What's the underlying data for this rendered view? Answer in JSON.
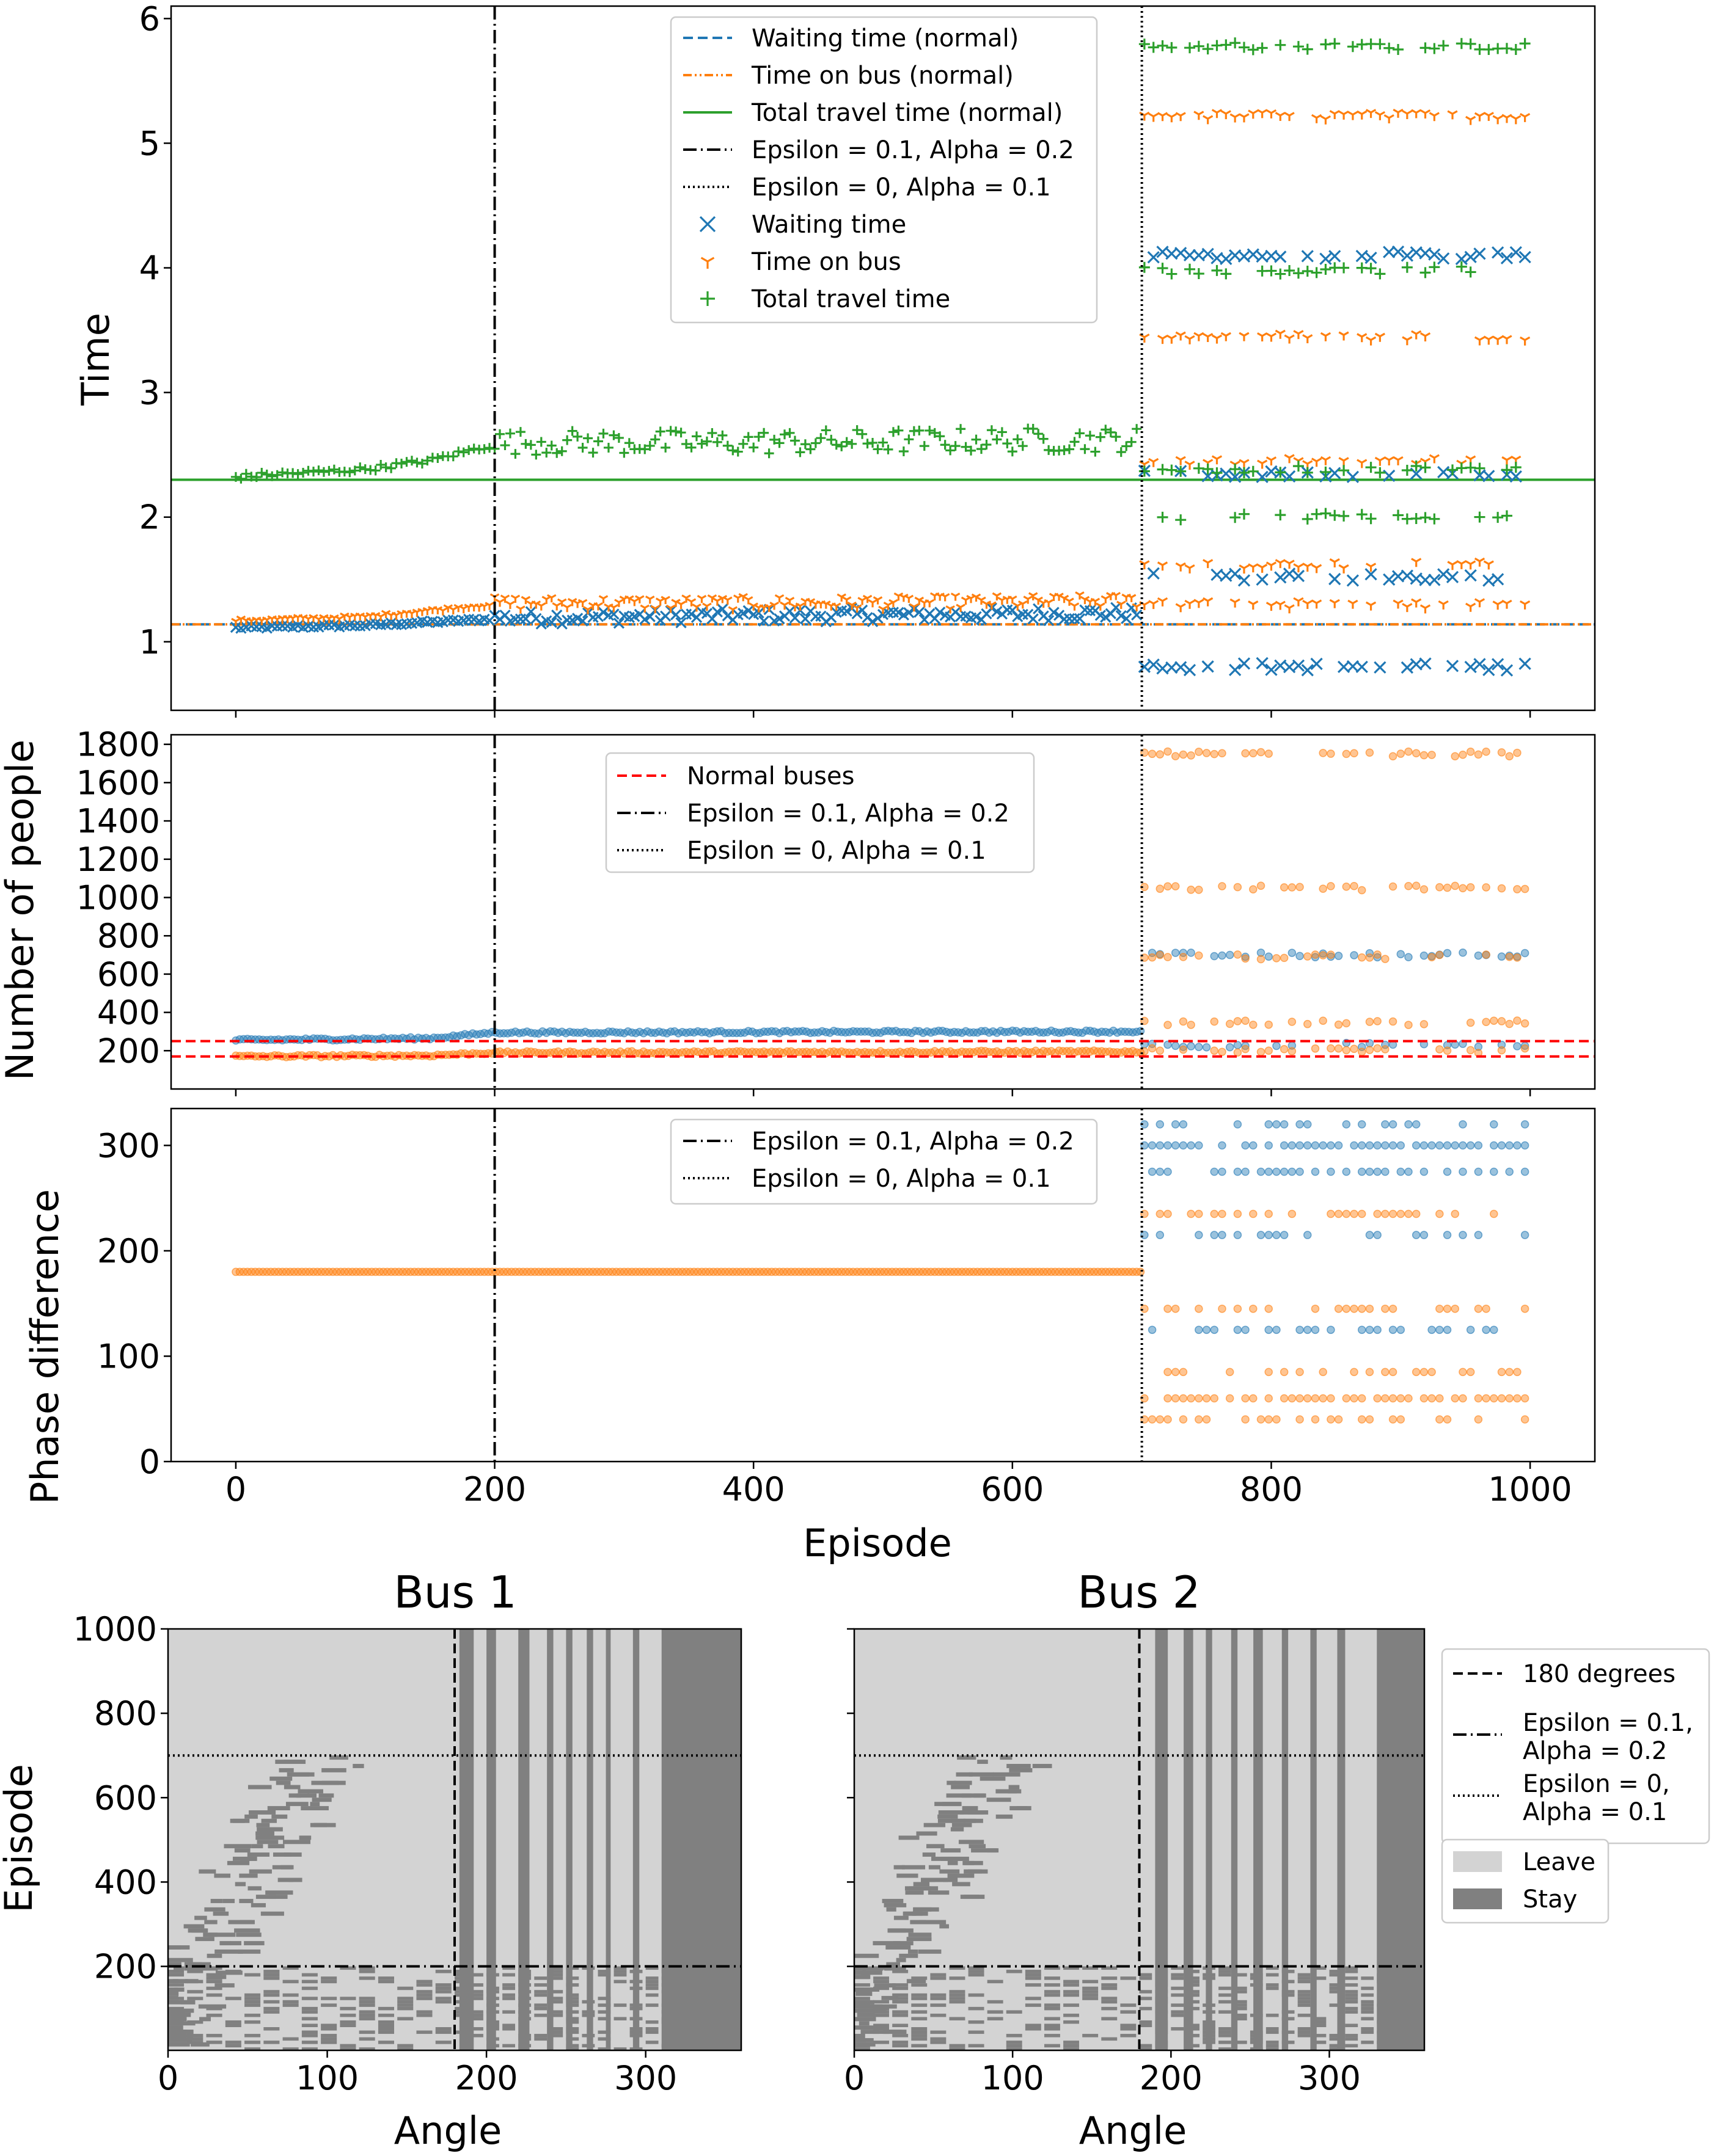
{
  "colors": {
    "blue": "#1f77b4",
    "orange": "#ff7f0e",
    "green": "#2ca02c",
    "red": "#ff0000",
    "black": "#000000",
    "leave": "#d3d3d3",
    "stay": "#808080"
  },
  "chart_data": [
    {
      "type": "scatter",
      "panel": "time",
      "ylabel": "Time",
      "xlabel": "",
      "xlim": [
        -50,
        1050
      ],
      "ylim": [
        0.45,
        6.1
      ],
      "yticks": [
        "1",
        "2",
        "3",
        "4",
        "5",
        "6"
      ],
      "ytick_values": [
        1,
        2,
        3,
        4,
        5,
        6
      ],
      "grid": false,
      "legend_position": "top-center",
      "reference_lines": [
        {
          "name": "Waiting time (normal)",
          "y": 1.14,
          "style": "dashed",
          "color": "blue"
        },
        {
          "name": "Time on bus (normal)",
          "y": 1.14,
          "style": "dashdotdot",
          "color": "orange"
        },
        {
          "name": "Total travel time (normal)",
          "y": 2.3,
          "style": "solid",
          "color": "green"
        }
      ],
      "vertical_lines": [
        {
          "name": "Epsilon = 0.1, Alpha = 0.2",
          "x": 200,
          "style": "dashdot"
        },
        {
          "name": "Epsilon = 0, Alpha = 0.1",
          "x": 700,
          "style": "dotted"
        }
      ],
      "series": [
        {
          "name": "Waiting time",
          "marker": "x",
          "color": "blue",
          "trend": [
            [
              0,
              1.11
            ],
            [
              100,
              1.13
            ],
            [
              200,
              1.18
            ],
            [
              400,
              1.2
            ],
            [
              600,
              1.21
            ],
            [
              700,
              1.22
            ]
          ],
          "levels_after_700": [
            4.1,
            2.35,
            1.52,
            0.8
          ]
        },
        {
          "name": "Time on bus",
          "marker": "tri_down",
          "color": "orange",
          "trend": [
            [
              0,
              1.17
            ],
            [
              100,
              1.2
            ],
            [
              200,
              1.3
            ],
            [
              400,
              1.3
            ],
            [
              600,
              1.31
            ],
            [
              700,
              1.32
            ]
          ],
          "levels_after_700": [
            5.22,
            3.45,
            2.45,
            1.62,
            1.3
          ]
        },
        {
          "name": "Total travel time",
          "marker": "plus",
          "color": "green",
          "trend": [
            [
              0,
              2.32
            ],
            [
              100,
              2.38
            ],
            [
              150,
              2.45
            ],
            [
              200,
              2.58
            ],
            [
              400,
              2.58
            ],
            [
              600,
              2.6
            ],
            [
              700,
              2.6
            ]
          ],
          "levels_after_700": [
            5.78,
            3.98,
            2.38,
            2.0
          ]
        }
      ]
    },
    {
      "type": "scatter",
      "panel": "people",
      "ylabel": "Number of people",
      "xlabel": "",
      "xlim": [
        -50,
        1050
      ],
      "ylim": [
        0,
        1850
      ],
      "yticks": [
        "200",
        "400",
        "600",
        "800",
        "1000",
        "1200",
        "1400",
        "1600",
        "1800"
      ],
      "ytick_values": [
        200,
        400,
        600,
        800,
        1000,
        1200,
        1400,
        1600,
        1800
      ],
      "grid": false,
      "legend_position": "top-center",
      "reference_lines": [
        {
          "name": "Normal buses",
          "y": 250,
          "style": "dashed",
          "color": "red"
        },
        {
          "name": "Normal buses",
          "y": 170,
          "style": "dashed",
          "color": "red",
          "hidden_in_legend": true
        }
      ],
      "vertical_lines": [
        {
          "name": "Epsilon = 0.1, Alpha = 0.2",
          "x": 200,
          "style": "dashdot"
        },
        {
          "name": "Epsilon = 0, Alpha = 0.1",
          "x": 700,
          "style": "dotted"
        }
      ],
      "series": [
        {
          "color": "blue",
          "trend": [
            [
              0,
              255
            ],
            [
              150,
              265
            ],
            [
              200,
              295
            ],
            [
              700,
              300
            ]
          ],
          "levels_after_700": [
            700,
            230
          ]
        },
        {
          "color": "orange",
          "trend": [
            [
              0,
              170
            ],
            [
              150,
              175
            ],
            [
              200,
              190
            ],
            [
              700,
              195
            ]
          ],
          "levels_after_700": [
            1750,
            1050,
            690,
            345,
            200
          ]
        }
      ]
    },
    {
      "type": "scatter",
      "panel": "phase",
      "ylabel": "Phase difference",
      "xlabel": "Episode",
      "xlim": [
        -50,
        1050
      ],
      "ylim": [
        0,
        335
      ],
      "xticks": [
        "0",
        "200",
        "400",
        "600",
        "800",
        "1000"
      ],
      "xtick_values": [
        0,
        200,
        400,
        600,
        800,
        1000
      ],
      "yticks": [
        "0",
        "100",
        "200",
        "300"
      ],
      "ytick_values": [
        0,
        100,
        200,
        300
      ],
      "grid": false,
      "legend_position": "top-right",
      "vertical_lines": [
        {
          "name": "Epsilon = 0.1, Alpha = 0.2",
          "x": 200,
          "style": "dashdot"
        },
        {
          "name": "Epsilon = 0, Alpha = 0.1",
          "x": 700,
          "style": "dotted"
        }
      ],
      "series": [
        {
          "color": "orange",
          "trend": [
            [
              0,
              180
            ],
            [
              700,
              180
            ]
          ],
          "levels_after_700": [
            235,
            145,
            85,
            60,
            40
          ]
        },
        {
          "color": "blue",
          "trend": [],
          "levels_after_700": [
            320,
            300,
            275,
            215,
            125
          ]
        }
      ]
    },
    {
      "type": "heatmap",
      "panel": "bus1",
      "title": "Bus 1",
      "xlabel": "Angle",
      "ylabel": "Episode",
      "xlim": [
        0,
        360
      ],
      "ylim": [
        1,
        1000
      ],
      "xticks": [
        "0",
        "100",
        "200",
        "300"
      ],
      "xtick_values": [
        0,
        100,
        200,
        300
      ],
      "yticks": [
        "200",
        "400",
        "600",
        "800",
        "1000"
      ],
      "ytick_values": [
        200,
        400,
        600,
        800,
        1000
      ],
      "categories": [
        "Leave",
        "Stay"
      ],
      "stay_columns_full": [
        [
          183,
          192
        ],
        [
          200,
          206
        ],
        [
          220,
          227
        ],
        [
          238,
          242
        ],
        [
          250,
          254
        ],
        [
          263,
          267
        ],
        [
          275,
          278
        ],
        [
          292,
          296
        ],
        [
          310,
          360
        ]
      ],
      "reference_lines": [
        {
          "name": "180 degrees",
          "x": 180,
          "style": "dashed"
        },
        {
          "name": "Epsilon = 0.1, Alpha = 0.2",
          "y": 200,
          "style": "dashdot"
        },
        {
          "name": "Epsilon = 0, Alpha = 0.1",
          "y": 700,
          "style": "dotted"
        }
      ]
    },
    {
      "type": "heatmap",
      "panel": "bus2",
      "title": "Bus 2",
      "xlabel": "Angle",
      "ylabel": "",
      "xlim": [
        0,
        360
      ],
      "ylim": [
        1,
        1000
      ],
      "xticks": [
        "0",
        "100",
        "200",
        "300"
      ],
      "xtick_values": [
        0,
        100,
        200,
        300
      ],
      "yticks": [
        "",
        "",
        "",
        "",
        ""
      ],
      "ytick_values": [
        200,
        400,
        600,
        800,
        1000
      ],
      "categories": [
        "Leave",
        "Stay"
      ],
      "stay_columns_full": [
        [
          190,
          198
        ],
        [
          208,
          214
        ],
        [
          222,
          226
        ],
        [
          238,
          242
        ],
        [
          252,
          258
        ],
        [
          270,
          274
        ],
        [
          288,
          292
        ],
        [
          305,
          310
        ],
        [
          330,
          360
        ]
      ],
      "reference_lines": [
        {
          "name": "180 degrees",
          "x": 180,
          "style": "dashed"
        },
        {
          "name": "Epsilon = 0.1, Alpha = 0.2",
          "y": 200,
          "style": "dashdot"
        },
        {
          "name": "Epsilon = 0, Alpha = 0.1",
          "y": 700,
          "style": "dotted"
        }
      ]
    }
  ],
  "legends": {
    "time": [
      "Waiting time (normal)",
      "Time on bus (normal)",
      "Total travel time (normal)",
      "Epsilon = 0.1, Alpha = 0.2",
      "Epsilon = 0, Alpha = 0.1",
      "Waiting time",
      "Time on bus",
      "Total travel time"
    ],
    "people": [
      "Normal buses",
      "Epsilon = 0.1, Alpha = 0.2",
      "Epsilon = 0, Alpha = 0.1"
    ],
    "phase": [
      "Epsilon = 0.1, Alpha = 0.2",
      "Epsilon = 0, Alpha = 0.1"
    ],
    "heat_lines": [
      [
        "180 degrees"
      ],
      [
        "Epsilon = 0.1,",
        "Alpha = 0.2"
      ],
      [
        "Epsilon = 0,",
        "Alpha = 0.1"
      ]
    ],
    "heat_patches": [
      "Leave",
      "Stay"
    ]
  }
}
